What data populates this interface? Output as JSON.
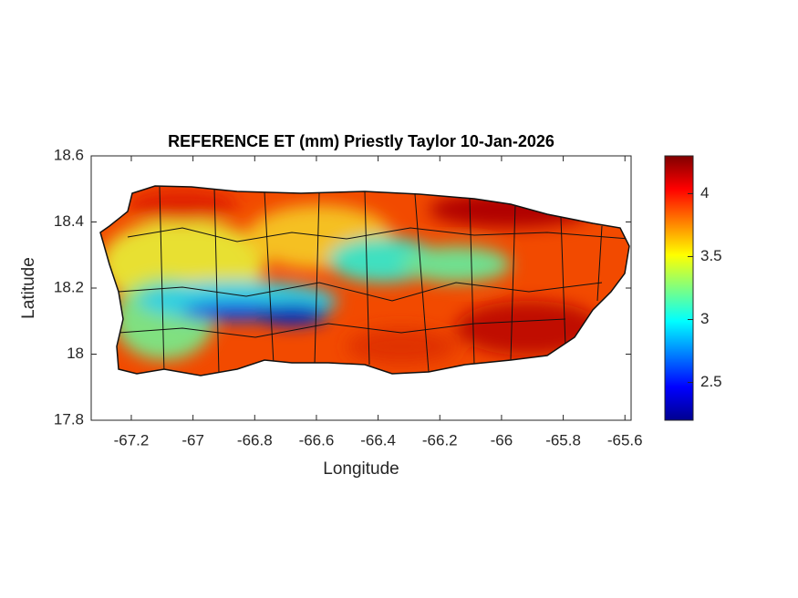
{
  "chart_data": {
    "type": "heatmap",
    "title": "REFERENCE ET (mm) Priestly Taylor 10-Jan-2026",
    "xlabel": "Longitude",
    "ylabel": "Latitude",
    "xlim": [
      -67.33,
      -65.58
    ],
    "xticks": [
      -67.2,
      -67,
      -66.8,
      -66.6,
      -66.4,
      -66.2,
      -66,
      -65.8,
      -65.6
    ],
    "ylim": [
      17.8,
      18.6
    ],
    "yticks": [
      17.8,
      18,
      18.2,
      18.4,
      18.6
    ],
    "colormap": "jet",
    "clim": [
      2.2,
      4.3
    ],
    "cticks": [
      2.5,
      3,
      3.5,
      4
    ]
  }
}
